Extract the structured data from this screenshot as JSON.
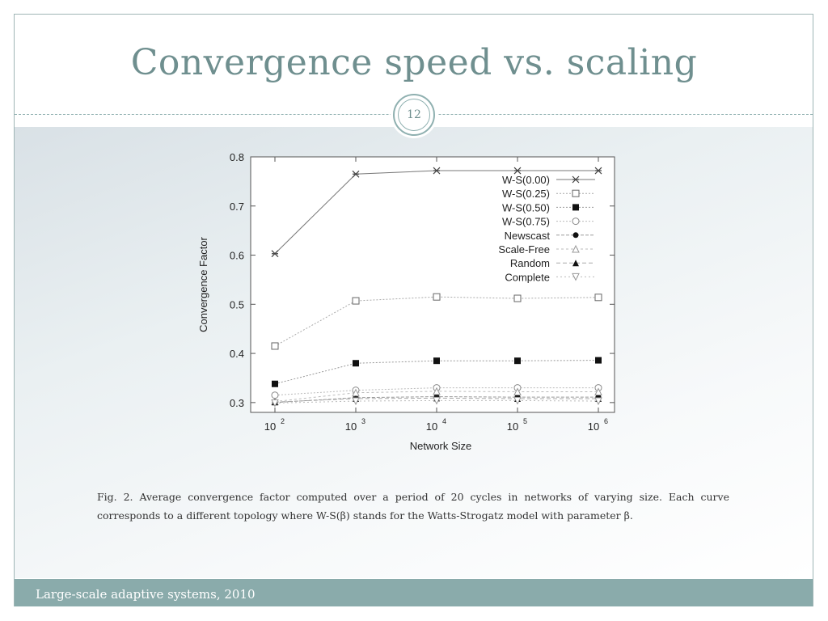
{
  "slide": {
    "title": "Convergence speed vs. scaling",
    "number": "12",
    "footer": "Large-scale adaptive systems, 2010",
    "caption": "Fig. 2.  Average convergence factor computed over a period of 20 cycles in networks of varying size. Each curve corresponds to a different topology where W-S(β) stands for the Watts-Strogatz model with parameter β."
  },
  "chart_data": {
    "type": "line",
    "title": "",
    "xlabel": "Network Size",
    "ylabel": "Convergence Factor",
    "x_scale": "log",
    "x": [
      100,
      1000,
      10000,
      100000,
      1000000
    ],
    "x_tick_labels": [
      {
        "base": "10",
        "exp": "2"
      },
      {
        "base": "10",
        "exp": "3"
      },
      {
        "base": "10",
        "exp": "4"
      },
      {
        "base": "10",
        "exp": "5"
      },
      {
        "base": "10",
        "exp": "6"
      }
    ],
    "ylim": [
      0.28,
      0.8
    ],
    "y_ticks": [
      "0.3",
      "0.4",
      "0.5",
      "0.6",
      "0.7",
      "0.8"
    ],
    "legend_position": "top-right",
    "series": [
      {
        "name": "W-S(0.00)",
        "marker": "star",
        "values": [
          0.603,
          0.765,
          0.772,
          0.772,
          0.772
        ]
      },
      {
        "name": "W-S(0.25)",
        "marker": "open-square",
        "values": [
          0.415,
          0.507,
          0.515,
          0.512,
          0.514
        ]
      },
      {
        "name": "W-S(0.50)",
        "marker": "filled-square",
        "values": [
          0.338,
          0.38,
          0.385,
          0.385,
          0.386
        ]
      },
      {
        "name": "W-S(0.75)",
        "marker": "open-circle",
        "values": [
          0.315,
          0.325,
          0.33,
          0.33,
          0.33
        ]
      },
      {
        "name": "Newscast",
        "marker": "filled-circle",
        "values": [
          0.3,
          0.31,
          0.312,
          0.311,
          0.311
        ]
      },
      {
        "name": "Scale-Free",
        "marker": "open-triangle",
        "values": [
          0.302,
          0.32,
          0.323,
          0.322,
          0.322
        ]
      },
      {
        "name": "Random",
        "marker": "filled-triangle",
        "values": [
          0.301,
          0.308,
          0.309,
          0.308,
          0.308
        ]
      },
      {
        "name": "Complete",
        "marker": "open-inverted-triangle",
        "values": [
          0.299,
          0.303,
          0.304,
          0.304,
          0.303
        ]
      }
    ]
  }
}
